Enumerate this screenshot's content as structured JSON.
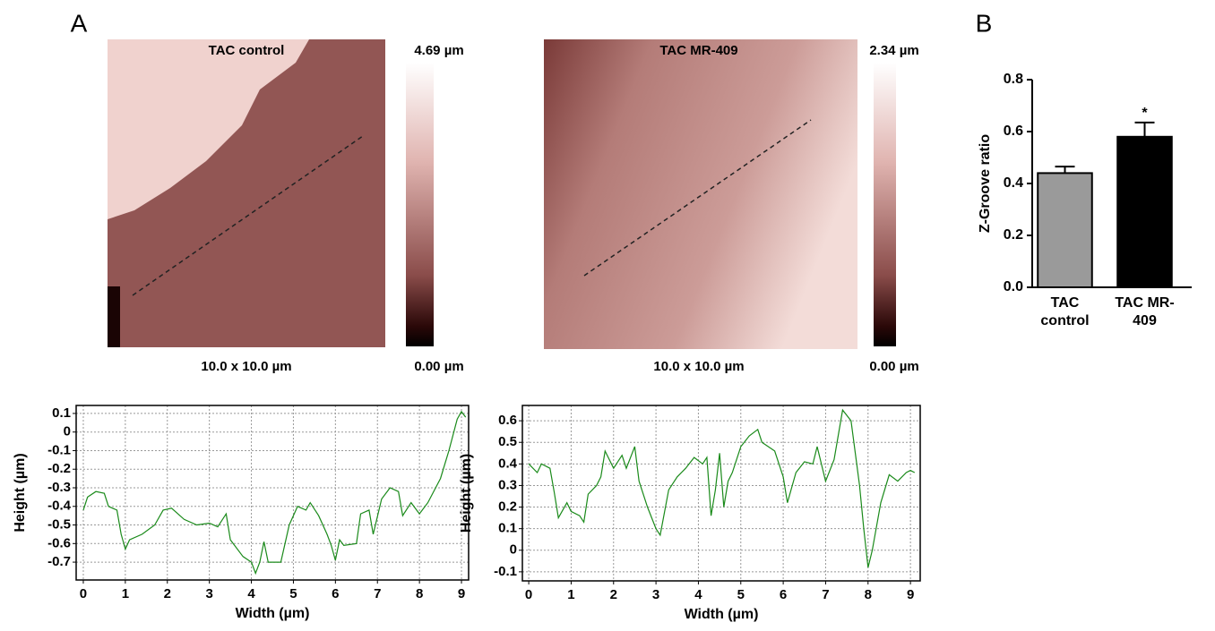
{
  "panels": [
    {
      "label": "A"
    },
    {
      "label": "B"
    }
  ],
  "afm_images": [
    {
      "title": "TAC control",
      "max_label": "4.69 µm",
      "min_label": "0.00 µm",
      "size_label": "10.0 x 10.0 µm"
    },
    {
      "title": "TAC MR-409",
      "max_label": "2.34 µm",
      "min_label": "0.00 µm",
      "size_label": "10.0 x 10.0 µm"
    }
  ],
  "chart_data": [
    {
      "type": "line",
      "x_label": "Width (µm)",
      "y_label": "Height (µm)",
      "color": "#1a8a1a",
      "grid": true,
      "x": [
        0,
        0.1,
        0.3,
        0.5,
        0.6,
        0.8,
        0.9,
        1.0,
        1.1,
        1.4,
        1.7,
        1.9,
        2.1,
        2.4,
        2.7,
        3.0,
        3.2,
        3.4,
        3.5,
        3.8,
        4.0,
        4.1,
        4.2,
        4.3,
        4.4,
        4.7,
        4.9,
        5.1,
        5.3,
        5.4,
        5.6,
        5.8,
        5.9,
        6.0,
        6.1,
        6.2,
        6.5,
        6.6,
        6.8,
        6.9,
        7.1,
        7.3,
        7.5,
        7.6,
        7.8,
        8.0,
        8.2,
        8.5,
        8.7,
        8.9,
        9.0,
        9.1
      ],
      "values": [
        -0.42,
        -0.35,
        -0.32,
        -0.33,
        -0.4,
        -0.42,
        -0.55,
        -0.63,
        -0.58,
        -0.55,
        -0.5,
        -0.42,
        -0.41,
        -0.47,
        -0.5,
        -0.49,
        -0.51,
        -0.44,
        -0.58,
        -0.67,
        -0.7,
        -0.76,
        -0.7,
        -0.59,
        -0.7,
        -0.7,
        -0.5,
        -0.4,
        -0.42,
        -0.38,
        -0.45,
        -0.55,
        -0.61,
        -0.69,
        -0.58,
        -0.61,
        -0.6,
        -0.44,
        -0.42,
        -0.55,
        -0.36,
        -0.3,
        -0.32,
        -0.45,
        -0.38,
        -0.44,
        -0.38,
        -0.25,
        -0.1,
        0.07,
        0.11,
        0.08
      ],
      "xlim": [
        -0.17,
        9.17
      ],
      "xticks": [
        0,
        1,
        2,
        3,
        4,
        5,
        6,
        7,
        8,
        9
      ],
      "ylim": [
        -0.796,
        0.143
      ],
      "yticks": [
        0.1,
        0,
        -0.1,
        -0.2,
        -0.3,
        -0.4,
        -0.5,
        -0.6,
        -0.7
      ]
    },
    {
      "type": "line",
      "x_label": "Width (µm)",
      "y_label": "Height (µm)",
      "color": "#1a8a1a",
      "grid": true,
      "x": [
        0,
        0.2,
        0.3,
        0.5,
        0.6,
        0.7,
        0.9,
        1.0,
        1.2,
        1.3,
        1.4,
        1.6,
        1.7,
        1.8,
        2.0,
        2.2,
        2.3,
        2.5,
        2.6,
        2.8,
        3.0,
        3.1,
        3.3,
        3.5,
        3.7,
        3.9,
        4.1,
        4.2,
        4.3,
        4.4,
        4.5,
        4.6,
        4.7,
        4.8,
        5.0,
        5.2,
        5.4,
        5.5,
        5.8,
        6.0,
        6.1,
        6.3,
        6.5,
        6.7,
        6.8,
        7.0,
        7.2,
        7.4,
        7.6,
        7.8,
        7.9,
        8.0,
        8.1,
        8.3,
        8.5,
        8.7,
        8.9,
        9.0,
        9.1
      ],
      "values": [
        0.4,
        0.36,
        0.4,
        0.38,
        0.27,
        0.15,
        0.22,
        0.18,
        0.16,
        0.13,
        0.26,
        0.3,
        0.34,
        0.46,
        0.38,
        0.44,
        0.38,
        0.48,
        0.32,
        0.2,
        0.1,
        0.07,
        0.28,
        0.34,
        0.38,
        0.43,
        0.4,
        0.43,
        0.16,
        0.28,
        0.45,
        0.2,
        0.32,
        0.36,
        0.48,
        0.53,
        0.56,
        0.5,
        0.46,
        0.34,
        0.22,
        0.36,
        0.41,
        0.4,
        0.48,
        0.32,
        0.42,
        0.65,
        0.6,
        0.3,
        0.1,
        -0.08,
        0,
        0.22,
        0.35,
        0.32,
        0.36,
        0.37,
        0.36
      ],
      "xlim": [
        -0.15,
        9.23
      ],
      "xticks": [
        0,
        1,
        2,
        3,
        4,
        5,
        6,
        7,
        8,
        9
      ],
      "ylim": [
        -0.142,
        0.671
      ],
      "yticks": [
        0.6,
        0.5,
        0.4,
        0.3,
        0.2,
        0.1,
        0,
        -0.1
      ]
    },
    {
      "type": "bar",
      "y_label": "Z-Groove ratio",
      "categories": [
        "TAC control",
        "TAC MR-409"
      ],
      "values": [
        0.44,
        0.58
      ],
      "errors": [
        0.025,
        0.055
      ],
      "colors": [
        "#9a9a9a",
        "#000000"
      ],
      "significance_labels": [
        null,
        "*"
      ],
      "ylim": [
        0,
        0.8
      ],
      "yticks": [
        {
          "value": 0,
          "label": "0.0"
        },
        {
          "value": 0.2,
          "label": "0.2"
        },
        {
          "value": 0.4,
          "label": "0.4"
        },
        {
          "value": 0.6,
          "label": "0.6"
        },
        {
          "value": 0.8,
          "label": "0.8"
        }
      ]
    }
  ]
}
